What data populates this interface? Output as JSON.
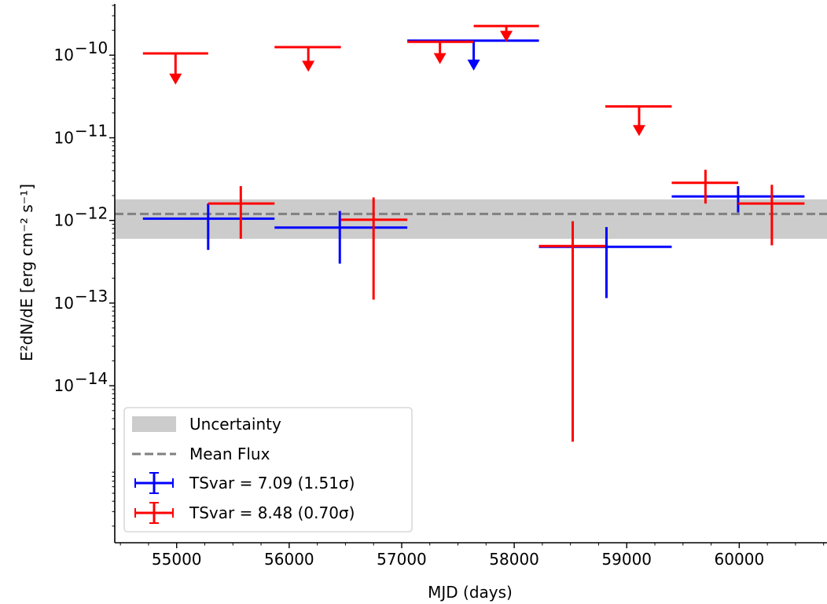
{
  "chart_data": {
    "type": "scatter",
    "xlabel": "MJD (days)",
    "ylabel": "E²dN/dE [erg cm⁻² s⁻¹]",
    "xlim": [
      54450,
      60780
    ],
    "ylim_log10": [
      -15.9,
      -9.38
    ],
    "y_scale": "log",
    "grid": false,
    "legend_placement": "lower-left",
    "x_ticks": [
      55000,
      56000,
      57000,
      58000,
      59000,
      60000
    ],
    "x_tick_labels": [
      "55000",
      "56000",
      "57000",
      "58000",
      "59000",
      "60000"
    ],
    "y_ticks_log10": [
      -14,
      -13,
      -12,
      -11,
      -10
    ],
    "y_tick_labels": [
      "10",
      "10",
      "10",
      "10",
      "10"
    ],
    "y_tick_exponents": [
      "−14",
      "−13",
      "−12",
      "−11",
      "−10"
    ],
    "mean_flux": {
      "name": "Mean Flux",
      "value": 1.2e-12,
      "color": "#808080",
      "band": {
        "name": "Uncertainty",
        "low": 6e-13,
        "high": 1.8e-12,
        "color": "#cccccc"
      }
    },
    "series": [
      {
        "name": "TSvar = 7.09 (1.51σ)",
        "color": "#0000ff",
        "points": [
          {
            "x": 55280,
            "xlo": 54700,
            "xhi": 55870,
            "y": 1.05e-12,
            "ylo": 4.4e-13,
            "yhi": 1.6e-12
          },
          {
            "x": 56450,
            "xlo": 55870,
            "xhi": 57050,
            "y": 8.2e-13,
            "ylo": 3e-13,
            "yhi": 1.3e-12
          },
          {
            "x": 58820,
            "xlo": 58220,
            "xhi": 59400,
            "y": 4.8e-13,
            "ylo": 1.15e-13,
            "yhi": 8.3e-13
          },
          {
            "x": 59990,
            "xlo": 59400,
            "xhi": 60580,
            "y": 1.95e-12,
            "ylo": 1.25e-12,
            "yhi": 2.6e-12
          }
        ],
        "upper_limits": [
          {
            "x": 57640,
            "xlo": 57050,
            "xhi": 58220,
            "y": 1.5e-10,
            "arrow_to": 6.5e-11
          }
        ]
      },
      {
        "name": "TSvar = 8.48 (0.70σ)",
        "color": "#ff0000",
        "points": [
          {
            "x": 55570,
            "xlo": 55280,
            "xhi": 55870,
            "y": 1.6e-12,
            "ylo": 6e-13,
            "yhi": 2.6e-12
          },
          {
            "x": 56750,
            "xlo": 56460,
            "xhi": 57050,
            "y": 1.02e-12,
            "ylo": 1.1e-13,
            "yhi": 1.9e-12
          },
          {
            "x": 58520,
            "xlo": 58220,
            "xhi": 58810,
            "y": 4.9e-13,
            "ylo": 2.1e-15,
            "yhi": 9.8e-13
          },
          {
            "x": 59700,
            "xlo": 59400,
            "xhi": 59990,
            "y": 2.85e-12,
            "ylo": 1.6e-12,
            "yhi": 4.1e-12
          },
          {
            "x": 60290,
            "xlo": 59990,
            "xhi": 60580,
            "y": 1.6e-12,
            "ylo": 5e-13,
            "yhi": 2.7e-12
          }
        ],
        "upper_limits": [
          {
            "x": 54990,
            "xlo": 54700,
            "xhi": 55280,
            "y": 1.05e-10,
            "arrow_to": 4.4e-11
          },
          {
            "x": 56170,
            "xlo": 55870,
            "xhi": 56460,
            "y": 1.25e-10,
            "arrow_to": 6.3e-11
          },
          {
            "x": 57340,
            "xlo": 57050,
            "xhi": 57640,
            "y": 1.45e-10,
            "arrow_to": 7.8e-11
          },
          {
            "x": 57930,
            "xlo": 57640,
            "xhi": 58220,
            "y": 2.25e-10,
            "arrow_to": 1.45e-10
          },
          {
            "x": 59110,
            "xlo": 58810,
            "xhi": 59400,
            "y": 2.4e-11,
            "arrow_to": 1.05e-11
          }
        ]
      }
    ],
    "legend": [
      {
        "label": "Uncertainty",
        "kind": "band"
      },
      {
        "label": "Mean Flux",
        "kind": "dashed"
      },
      {
        "label": "TSvar = 7.09 (1.51σ)",
        "kind": "errorbar",
        "series": 0
      },
      {
        "label": "TSvar = 8.48 (0.70σ)",
        "kind": "errorbar",
        "series": 1
      }
    ]
  }
}
